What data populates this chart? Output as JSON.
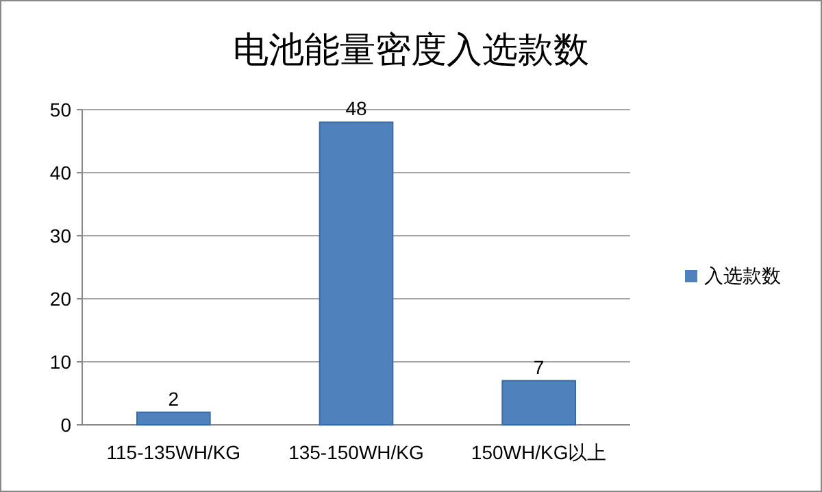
{
  "chart_data": {
    "type": "bar",
    "title": "电池能量密度入选款数",
    "categories": [
      "115-135WH/KG",
      "135-150WH/KG",
      "150WH/KG以上"
    ],
    "series": [
      {
        "name": "入选款数",
        "color": "#4f81bd",
        "values": [
          2,
          48,
          7
        ]
      }
    ],
    "ylim": [
      0,
      50
    ],
    "yticks": [
      0,
      10,
      20,
      30,
      40,
      50
    ],
    "grid": "y",
    "legend": "right",
    "data_labels": true
  }
}
